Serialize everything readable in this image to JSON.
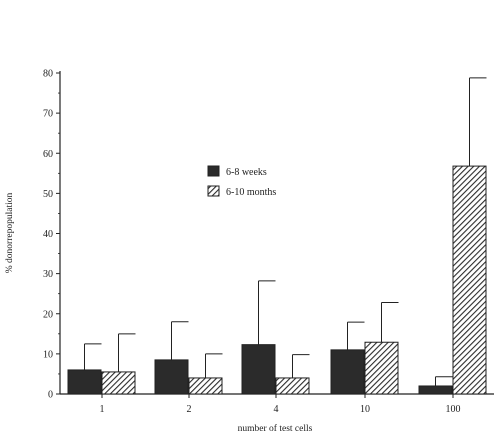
{
  "chart_data": {
    "type": "bar",
    "title": "",
    "xlabel": "number of test cells",
    "ylabel": "% donorrepopulation",
    "ylim": [
      0,
      80
    ],
    "yticks": [
      0,
      10,
      20,
      30,
      40,
      50,
      60,
      70,
      80
    ],
    "categories": [
      "1",
      "2",
      "4",
      "10",
      "100"
    ],
    "series": [
      {
        "name": "6-8 weeks",
        "pattern": "solid",
        "color": "#2b2b2b",
        "values": [
          6,
          8.5,
          12.3,
          11,
          2
        ],
        "errors": [
          12.5,
          18,
          28.2,
          17.9,
          4.3
        ]
      },
      {
        "name": "6-10 months",
        "pattern": "hatched",
        "color": "#2b2b2b",
        "values": [
          5.5,
          4,
          4,
          12.9,
          56.8
        ],
        "errors": [
          15,
          10,
          9.8,
          22.8,
          78.8
        ]
      }
    ],
    "legend": {
      "position": "upper-middle"
    },
    "grid": false
  }
}
